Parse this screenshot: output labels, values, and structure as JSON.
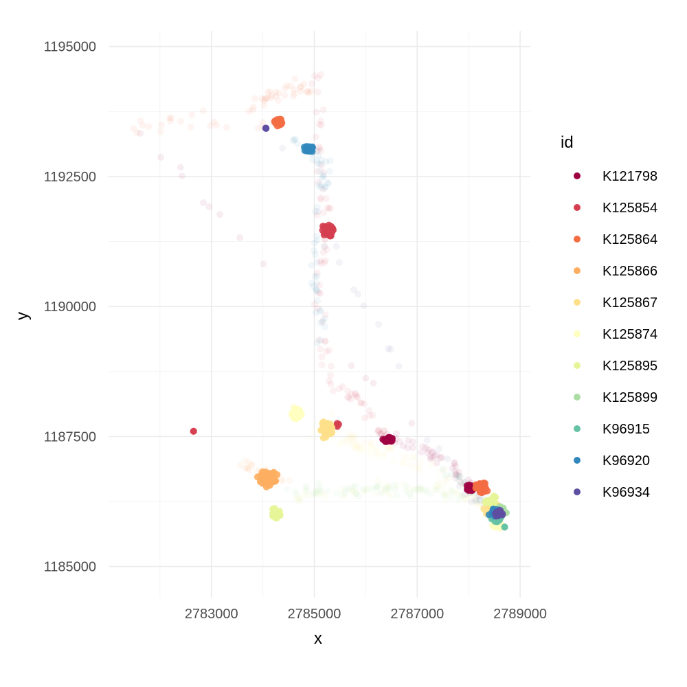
{
  "chart_data": {
    "type": "scatter",
    "title": "",
    "xlabel": "x",
    "ylabel": "y",
    "xlim": [
      2781000,
      2789200
    ],
    "ylim": [
      1184400,
      1195300
    ],
    "x_ticks": [
      2783000,
      2785000,
      2787000,
      2789000
    ],
    "x_tick_labels": [
      "2783000",
      "2785000",
      "2787000",
      "2789000"
    ],
    "y_ticks": [
      1185000,
      1187500,
      1190000,
      1192500,
      1195000
    ],
    "y_tick_labels": [
      "1185000",
      "1187500",
      "1190000",
      "1192500",
      "1195000"
    ],
    "grid": true,
    "legend": {
      "title": "id",
      "position": "right"
    },
    "series": [
      {
        "name": "K121798",
        "color": "#9E0142",
        "clusters": [
          {
            "x": 2786450,
            "y": 1187440,
            "sx": 90,
            "sy": 50,
            "n": 40
          },
          {
            "x": 2788050,
            "y": 1186520,
            "sx": 70,
            "sy": 70,
            "n": 25
          }
        ],
        "trail": [
          [
            2786200,
            1187600
          ],
          [
            2787000,
            1187300
          ],
          [
            2787600,
            1187000
          ],
          [
            2788000,
            1186600
          ],
          [
            2781600,
            1193350
          ]
        ]
      },
      {
        "name": "K125854",
        "color": "#D53E4F",
        "clusters": [
          {
            "x": 2785250,
            "y": 1191450,
            "sx": 110,
            "sy": 110,
            "n": 70
          },
          {
            "x": 2785450,
            "y": 1187720,
            "sx": 40,
            "sy": 40,
            "n": 4
          },
          {
            "x": 2782650,
            "y": 1187600,
            "sx": 10,
            "sy": 10,
            "n": 2
          }
        ],
        "trail": [
          [
            2785000,
            1194500
          ],
          [
            2785100,
            1193000
          ],
          [
            2785200,
            1191500
          ],
          [
            2785100,
            1190000
          ],
          [
            2785300,
            1188500
          ],
          [
            2785900,
            1188200
          ],
          [
            2786400,
            1187500
          ]
        ]
      },
      {
        "name": "K125864",
        "color": "#F46D43",
        "clusters": [
          {
            "x": 2784300,
            "y": 1193550,
            "sx": 80,
            "sy": 80,
            "n": 25
          },
          {
            "x": 2788250,
            "y": 1186500,
            "sx": 110,
            "sy": 110,
            "n": 70
          }
        ],
        "trail": [
          [
            2783800,
            1193900
          ],
          [
            2784400,
            1194100
          ],
          [
            2784900,
            1194200
          ],
          [
            2781400,
            1193400
          ],
          [
            2784300,
            1193500
          ]
        ]
      },
      {
        "name": "K125866",
        "color": "#FDAE61",
        "clusters": [
          {
            "x": 2784100,
            "y": 1186700,
            "sx": 150,
            "sy": 120,
            "n": 110
          }
        ],
        "trail": [
          [
            2783500,
            1187000
          ],
          [
            2784000,
            1186800
          ],
          [
            2784600,
            1186600
          ]
        ]
      },
      {
        "name": "K125867",
        "color": "#FEE08B",
        "clusters": [
          {
            "x": 2785250,
            "y": 1187650,
            "sx": 120,
            "sy": 140,
            "n": 55
          },
          {
            "x": 2788500,
            "y": 1186100,
            "sx": 120,
            "sy": 110,
            "n": 70
          }
        ],
        "trail": [
          [
            2785200,
            1187900
          ],
          [
            2785800,
            1187400
          ],
          [
            2786600,
            1187200
          ],
          [
            2787600,
            1186700
          ],
          [
            2788400,
            1186100
          ]
        ]
      },
      {
        "name": "K125874",
        "color": "#FFFFBF",
        "clusters": [
          {
            "x": 2784650,
            "y": 1187950,
            "sx": 80,
            "sy": 100,
            "n": 60
          },
          {
            "x": 2788550,
            "y": 1185800,
            "sx": 100,
            "sy": 80,
            "n": 30
          }
        ],
        "trail": [
          [
            2784700,
            1187700
          ],
          [
            2785900,
            1187300
          ],
          [
            2787000,
            1186900
          ]
        ]
      },
      {
        "name": "K125895",
        "color": "#E6F598",
        "clusters": [
          {
            "x": 2784250,
            "y": 1186020,
            "sx": 110,
            "sy": 80,
            "n": 35
          },
          {
            "x": 2788450,
            "y": 1186250,
            "sx": 100,
            "sy": 80,
            "n": 35
          }
        ],
        "trail": [
          [
            2784600,
            1186300
          ],
          [
            2785500,
            1186400
          ],
          [
            2786400,
            1186500
          ],
          [
            2787400,
            1186500
          ],
          [
            2788200,
            1186300
          ]
        ]
      },
      {
        "name": "K125899",
        "color": "#ABDDA4",
        "clusters": [
          {
            "x": 2788600,
            "y": 1186050,
            "sx": 100,
            "sy": 90,
            "n": 60
          }
        ],
        "trail": [
          [
            2784500,
            1186450
          ],
          [
            2785300,
            1186450
          ],
          [
            2786100,
            1186500
          ],
          [
            2787000,
            1186450
          ],
          [
            2787900,
            1186350
          ]
        ]
      },
      {
        "name": "K96915",
        "color": "#66C2A5",
        "clusters": [
          {
            "x": 2788550,
            "y": 1185950,
            "sx": 90,
            "sy": 90,
            "n": 45
          },
          {
            "x": 2788700,
            "y": 1185760,
            "sx": 15,
            "sy": 15,
            "n": 2
          }
        ],
        "trail": [
          [
            2787600,
            1186800
          ],
          [
            2788100,
            1186400
          ],
          [
            2788500,
            1186000
          ]
        ]
      },
      {
        "name": "K96920",
        "color": "#3288BD",
        "clusters": [
          {
            "x": 2784900,
            "y": 1193030,
            "sx": 70,
            "sy": 60,
            "n": 50
          },
          {
            "x": 2788500,
            "y": 1186050,
            "sx": 90,
            "sy": 80,
            "n": 40
          }
        ],
        "trail": [
          [
            2784600,
            1193200
          ],
          [
            2785200,
            1192800
          ],
          [
            2785100,
            1192200
          ],
          [
            2785000,
            1190500
          ],
          [
            2785200,
            1189000
          ]
        ]
      },
      {
        "name": "K96934",
        "color": "#5E4FA2",
        "clusters": [
          {
            "x": 2784050,
            "y": 1193420,
            "sx": 15,
            "sy": 15,
            "n": 3
          },
          {
            "x": 2788580,
            "y": 1186020,
            "sx": 60,
            "sy": 60,
            "n": 35
          }
        ],
        "trail": [
          [
            2784200,
            1193400
          ],
          [
            2787800,
            1186600
          ],
          [
            2788400,
            1186200
          ]
        ]
      }
    ]
  }
}
